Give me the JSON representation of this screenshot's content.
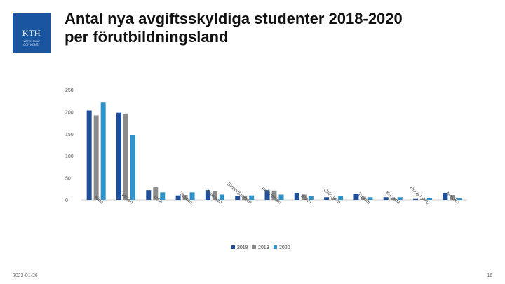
{
  "header": {
    "title_line1": "Antal nya avgiftsskyldiga studenter 2018-2020",
    "title_line2": "per förutbildningsland",
    "logo_text": "KTH",
    "logo_sub_line1": "VETENSKAP",
    "logo_sub_line2": "OCH KONST"
  },
  "footer": {
    "date": "2022-01-26",
    "page": "16"
  },
  "colors": {
    "2018": "#1f4e9a",
    "2019": "#8c8c8c",
    "2020": "#2f93c9",
    "logo": "#1a56a0"
  },
  "chart_data": {
    "type": "bar",
    "title": "",
    "xlabel": "",
    "ylabel": "",
    "ylim": [
      0,
      250
    ],
    "yticks": [
      "0",
      "50",
      "100",
      "150",
      "200",
      "250"
    ],
    "categories": [
      "Kina",
      "Indien",
      "USA",
      "Taiwan",
      "Pakistan",
      "Storbritannien",
      "Indonesien",
      "IRAN",
      "Colombia",
      "Turkiet",
      "Kanada",
      "Hong Kong",
      "Mexiko"
    ],
    "series": [
      {
        "name": "2018",
        "values": [
          203,
          198,
          22,
          10,
          22,
          8,
          22,
          16,
          6,
          14,
          6,
          2,
          16
        ]
      },
      {
        "name": "2019",
        "values": [
          192,
          196,
          29,
          11,
          19,
          9,
          21,
          12,
          4,
          6,
          4,
          2,
          11
        ]
      },
      {
        "name": "2020",
        "values": [
          221,
          148,
          17,
          17,
          12,
          10,
          12,
          8,
          8,
          6,
          6,
          4,
          4
        ]
      }
    ],
    "legend_position": "bottom",
    "grid": false
  }
}
